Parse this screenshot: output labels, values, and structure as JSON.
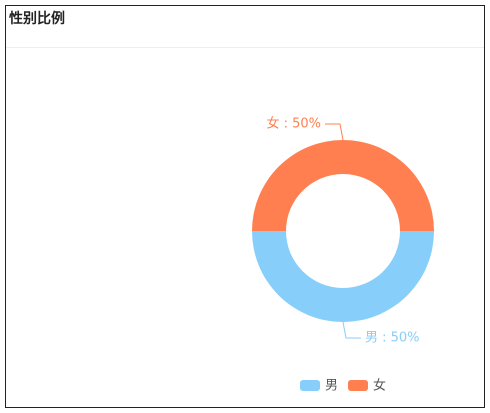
{
  "chart_data": {
    "type": "pie",
    "title": "性别比例",
    "donut": true,
    "categories": [
      "男",
      "女"
    ],
    "values": [
      50,
      50
    ],
    "value_labels": [
      "男 : 50%",
      "女 : 50%"
    ],
    "colors": [
      "#87cefa",
      "#ff7f50"
    ],
    "legend": "bottom"
  }
}
